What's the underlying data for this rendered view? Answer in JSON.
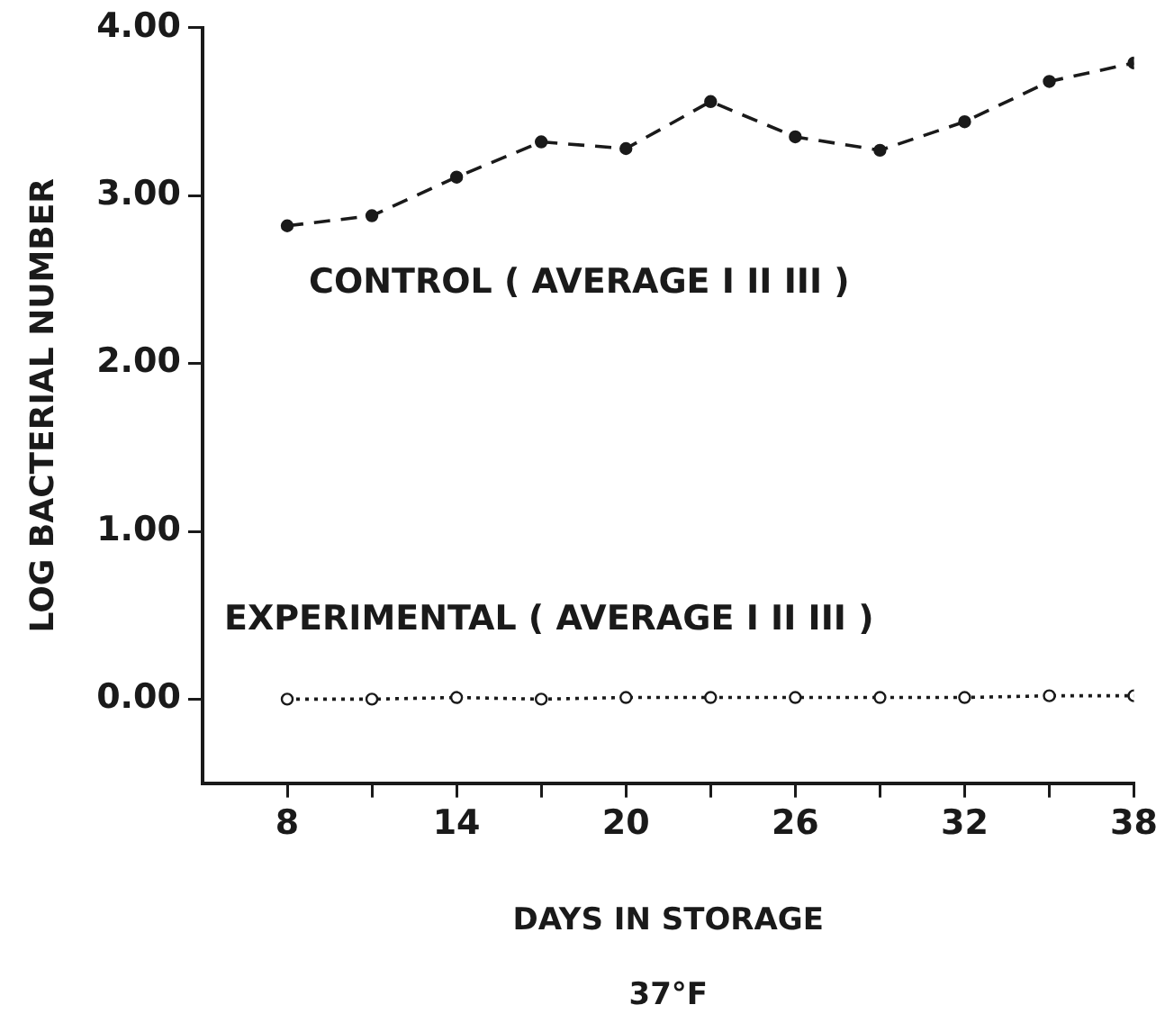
{
  "chart_data": {
    "type": "line",
    "x": [
      8,
      11,
      14,
      17,
      20,
      23,
      26,
      29,
      32,
      35,
      38
    ],
    "series": [
      {
        "name": "CONTROL ( AVERAGE I II III )",
        "color": "#1a1a1a",
        "marker": "circle",
        "line_style": "dashed",
        "values": [
          2.82,
          2.88,
          3.11,
          3.32,
          3.28,
          3.56,
          3.35,
          3.27,
          3.44,
          3.68,
          3.79
        ]
      },
      {
        "name": "EXPERIMENTAL ( AVERAGE I II III )",
        "color": "#1a1a1a",
        "marker": "open circle",
        "line_style": "dotted",
        "values": [
          0.0,
          0.0,
          0.01,
          0.0,
          0.01,
          0.01,
          0.01,
          0.01,
          0.01,
          0.02,
          0.02
        ]
      }
    ],
    "xlabel": "DAYS IN STORAGE",
    "ylabel": "LOG BACTERIAL NUMBER",
    "annotations": [
      "37°F"
    ],
    "xlim": [
      5,
      38
    ],
    "xticks": [
      8,
      {
        "value": 11,
        "label": null
      },
      14,
      {
        "value": 17,
        "label": null
      },
      20,
      {
        "value": 23,
        "label": null
      },
      26,
      {
        "value": 29,
        "label": null
      },
      32,
      {
        "value": 35,
        "label": null
      },
      38
    ],
    "ylim": [
      -0.5,
      4.0
    ],
    "yticks": [
      {
        "value": 0,
        "label": "0.00"
      },
      {
        "value": 1,
        "label": "1.00"
      },
      {
        "value": 2,
        "label": "2.00"
      },
      {
        "value": 3,
        "label": "3.00"
      },
      {
        "value": 4,
        "label": "4.00"
      }
    ],
    "grid": false,
    "legend": false
  }
}
